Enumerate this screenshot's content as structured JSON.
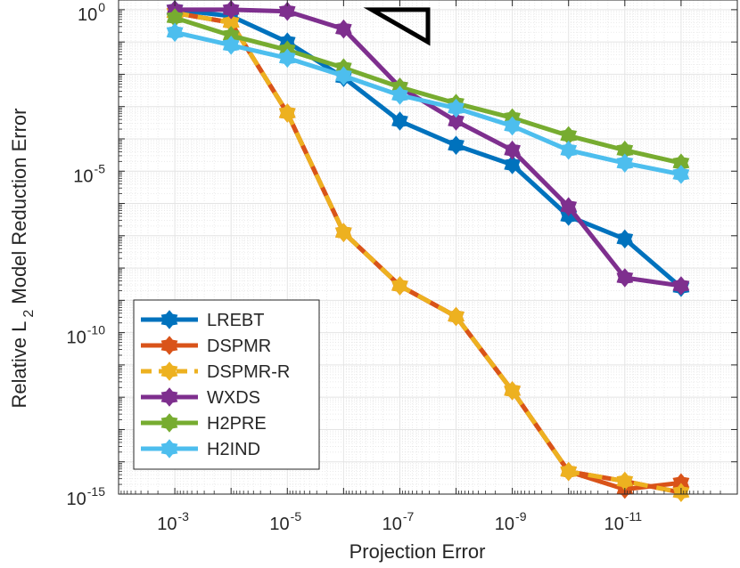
{
  "chart_data": {
    "type": "line",
    "title": "",
    "xlabel": "Projection Error",
    "ylabel": "Relative L 2 Model Reduction Error",
    "ylabel_parts": {
      "pre": "Relative L",
      "sub": "2",
      "post": " Model Reduction Error"
    },
    "x_scale": "log-reversed",
    "y_scale": "log",
    "xlim_exp": [
      -2,
      -13
    ],
    "ylim_exp": [
      -15,
      0.3
    ],
    "grid": true,
    "legend_position": "bottom-left",
    "x_ticks": [
      {
        "base": "10",
        "exp": "-3",
        "value_exp": -3
      },
      {
        "base": "10",
        "exp": "-5",
        "value_exp": -5
      },
      {
        "base": "10",
        "exp": "-7",
        "value_exp": -7
      },
      {
        "base": "10",
        "exp": "-9",
        "value_exp": -9
      },
      {
        "base": "10",
        "exp": "-11",
        "value_exp": -11
      }
    ],
    "y_ticks": [
      {
        "base": "10",
        "exp": "0",
        "value_exp": 0
      },
      {
        "base": "10",
        "exp": "-5",
        "value_exp": -5
      },
      {
        "base": "10",
        "exp": "-10",
        "value_exp": -10
      },
      {
        "base": "10",
        "exp": "-15",
        "value_exp": -15
      }
    ],
    "x_exp": [
      -3,
      -4,
      -5,
      -6,
      -7,
      -8,
      -9,
      -10,
      -11,
      -12
    ],
    "series": [
      {
        "name": "LREBT",
        "color": "#0072bd",
        "dashed": false,
        "y_exp": [
          0.0,
          -0.2,
          -1.0,
          -2.1,
          -3.45,
          -4.2,
          -4.8,
          -6.4,
          -7.1,
          -8.6
        ]
      },
      {
        "name": "DSPMR",
        "color": "#d95319",
        "dashed": false,
        "y_exp": [
          -0.1,
          -0.4,
          -3.2,
          -6.9,
          -8.55,
          -9.5,
          -11.8,
          -14.3,
          -14.85,
          -14.65
        ]
      },
      {
        "name": "DSPMR-R",
        "color": "#edb120",
        "dashed": true,
        "y_exp": [
          -0.1,
          -0.4,
          -3.2,
          -6.9,
          -8.55,
          -9.5,
          -11.8,
          -14.3,
          -14.6,
          -14.95
        ]
      },
      {
        "name": "WXDS",
        "color": "#7e2f8e",
        "dashed": false,
        "y_exp": [
          0.0,
          0.0,
          -0.05,
          -0.6,
          -2.4,
          -3.45,
          -4.35,
          -6.1,
          -8.3,
          -8.55
        ]
      },
      {
        "name": "H2PRE",
        "color": "#77ac30",
        "dashed": false,
        "y_exp": [
          -0.25,
          -0.8,
          -1.25,
          -1.8,
          -2.4,
          -2.9,
          -3.35,
          -3.9,
          -4.35,
          -4.75
        ]
      },
      {
        "name": "H2IND",
        "color": "#4dbeee",
        "dashed": false,
        "y_exp": [
          -0.7,
          -1.1,
          -1.5,
          -2.05,
          -2.65,
          -3.05,
          -3.6,
          -4.35,
          -4.75,
          -5.1
        ]
      }
    ],
    "annotations": [
      {
        "type": "slope-triangle",
        "color": "#000000",
        "x_exp": [
          -6.5,
          -7.5
        ],
        "y_exp": [
          0.0,
          -1.0
        ]
      }
    ]
  }
}
